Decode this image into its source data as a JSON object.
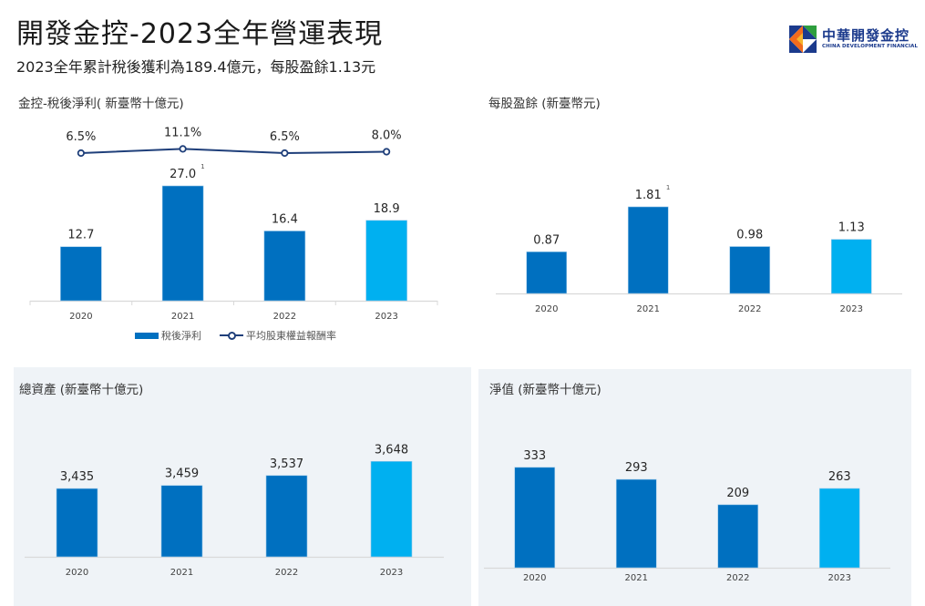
{
  "header": {
    "title": "開發金控-2023全年營運表現",
    "subtitle": "2023全年累計稅後獲利為189.4億元，每股盈餘1.13元"
  },
  "logo": {
    "name_cn": "中華開發金控",
    "name_en": "CHINA DEVELOPMENT FINANCIAL"
  },
  "colors": {
    "bar_primary": "#0070c0",
    "bar_highlight": "#00b0f0",
    "line": "#1f3f7a",
    "panel_bg": "#eff3f7",
    "axis": "#d9d9d9"
  },
  "chart_data": [
    {
      "id": "net-income",
      "type": "bar",
      "title": "金控-稅後淨利( 新臺幣十億元)",
      "categories": [
        "2020",
        "2021",
        "2022",
        "2023"
      ],
      "series": [
        {
          "name": "稅後淨利",
          "kind": "bar",
          "values": [
            12.7,
            27.0,
            16.4,
            18.9
          ],
          "labels": [
            "12.7",
            "27.0",
            "16.4",
            "18.9"
          ],
          "footnotes": [
            "",
            "1",
            "",
            ""
          ]
        },
        {
          "name": "平均股東權益報酬率",
          "kind": "line",
          "values": [
            6.5,
            11.1,
            6.5,
            8.0
          ],
          "labels": [
            "6.5%",
            "11.1%",
            "6.5%",
            "8.0%"
          ]
        }
      ],
      "highlight_index": 3,
      "legend": [
        "稅後淨利",
        "平均股東權益報酬率"
      ],
      "legend_position": "bottom",
      "ylim": [
        0,
        30
      ],
      "grid": false
    },
    {
      "id": "eps",
      "type": "bar",
      "title": "每股盈餘 (新臺幣元)",
      "categories": [
        "2020",
        "2021",
        "2022",
        "2023"
      ],
      "values": [
        0.87,
        1.81,
        0.98,
        1.13
      ],
      "labels": [
        "0.87",
        "1.81",
        "0.98",
        "1.13"
      ],
      "footnotes": [
        "",
        "1",
        "",
        ""
      ],
      "highlight_index": 3,
      "ylim": [
        0,
        2.4
      ],
      "grid": false
    },
    {
      "id": "total-assets",
      "type": "bar",
      "title": "總資產 (新臺幣十億元)",
      "categories": [
        "2020",
        "2021",
        "2022",
        "2023"
      ],
      "values": [
        3435,
        3459,
        3537,
        3648
      ],
      "labels": [
        "3,435",
        "3,459",
        "3,537",
        "3,648"
      ],
      "highlight_index": 3,
      "ylim": [
        2900,
        3750
      ],
      "grid": false
    },
    {
      "id": "net-worth",
      "type": "bar",
      "title": "淨值 (新臺幣十億元)",
      "categories": [
        "2020",
        "2021",
        "2022",
        "2023"
      ],
      "values": [
        333,
        293,
        209,
        263
      ],
      "labels": [
        "333",
        "293",
        "209",
        "263"
      ],
      "highlight_index": 3,
      "ylim": [
        0,
        390
      ],
      "grid": false
    }
  ]
}
